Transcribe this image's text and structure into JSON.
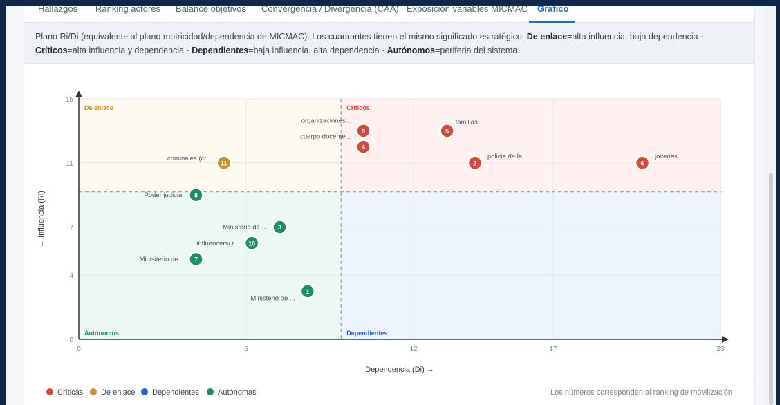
{
  "tabs": [
    {
      "label": "Hallazgos",
      "active": false
    },
    {
      "label": "Ranking actores",
      "active": false
    },
    {
      "label": "Balance objetivos",
      "active": false
    },
    {
      "label": "Convergencia / Divergencia (CAA)",
      "active": false
    },
    {
      "label": "Exposición variables MICMAC",
      "active": false
    },
    {
      "label": "Gráfico",
      "active": true
    }
  ],
  "note": {
    "intro": "Plano Ri/Di (equivalente al plano motricidad/dependencia de MICMAC). Los cuadrantes tienen el mismo significado estratégico: ",
    "items": [
      {
        "term": "De enlace",
        "desc": "=alta influencia, baja dependencia · "
      },
      {
        "term": "Críticos",
        "desc": "=alta influencia y dependencia · "
      },
      {
        "term": "Dependientes",
        "desc": "=baja influencia, alta dependencia · "
      },
      {
        "term": "Autónomos",
        "desc": "=periferia del sistema."
      }
    ]
  },
  "colors": {
    "critico": "#d14b3f",
    "enlace": "#c99035",
    "dependiente": "#2f62c6",
    "autonomo": "#1f8a6a"
  },
  "chart_data": {
    "type": "scatter",
    "xlabel": "Dependencia (Di) →",
    "ylabel": "← Influencia (Ri)",
    "xlim": [
      0,
      23
    ],
    "ylim": [
      0,
      15
    ],
    "xticks": [
      0,
      6,
      12,
      17,
      23
    ],
    "yticks": [
      0,
      4,
      7,
      11,
      15
    ],
    "threshold_x": 9.4,
    "threshold_y": 9.2,
    "quadrants": [
      {
        "key": "enlace",
        "label": "De enlace"
      },
      {
        "key": "critico",
        "label": "Críticos"
      },
      {
        "key": "autonomo",
        "label": "Autónomos"
      },
      {
        "key": "dependiente",
        "label": "Dependientes"
      }
    ],
    "points": [
      {
        "rank": "9",
        "label": "organizaciones...",
        "x": 10.2,
        "y": 13.0,
        "group": "critico"
      },
      {
        "rank": "5",
        "label": "familias",
        "x": 13.2,
        "y": 13.0,
        "group": "critico"
      },
      {
        "rank": "4",
        "label": "cuerpo docente...",
        "x": 10.2,
        "y": 12.0,
        "group": "critico"
      },
      {
        "rank": "2",
        "label": "policia de la ...",
        "x": 14.2,
        "y": 11.0,
        "group": "critico"
      },
      {
        "rank": "6",
        "label": "jovenes",
        "x": 20.2,
        "y": 11.0,
        "group": "critico"
      },
      {
        "rank": "11",
        "label": "criminales (cr...",
        "x": 5.2,
        "y": 11.0,
        "group": "enlace"
      },
      {
        "rank": "8",
        "label": "Poder judicial",
        "x": 4.2,
        "y": 9.0,
        "group": "autonomo"
      },
      {
        "rank": "3",
        "label": "Ministerio de ...",
        "x": 7.2,
        "y": 7.0,
        "group": "autonomo"
      },
      {
        "rank": "10",
        "label": "influencers/ r...",
        "x": 6.2,
        "y": 6.0,
        "group": "autonomo"
      },
      {
        "rank": "7",
        "label": "Minisiterio de...",
        "x": 4.2,
        "y": 5.0,
        "group": "autonomo"
      },
      {
        "rank": "1",
        "label": "Ministerio de ...",
        "x": 8.2,
        "y": 3.0,
        "group": "autonomo"
      }
    ]
  },
  "legend": {
    "items": [
      {
        "label": "Críticas",
        "key": "critico"
      },
      {
        "label": "De enlace",
        "key": "enlace"
      },
      {
        "label": "Dependientes",
        "key": "dependiente"
      },
      {
        "label": "Autónomas",
        "key": "autonomo"
      }
    ],
    "note": "Los números corresponden al ranking de movilización"
  }
}
